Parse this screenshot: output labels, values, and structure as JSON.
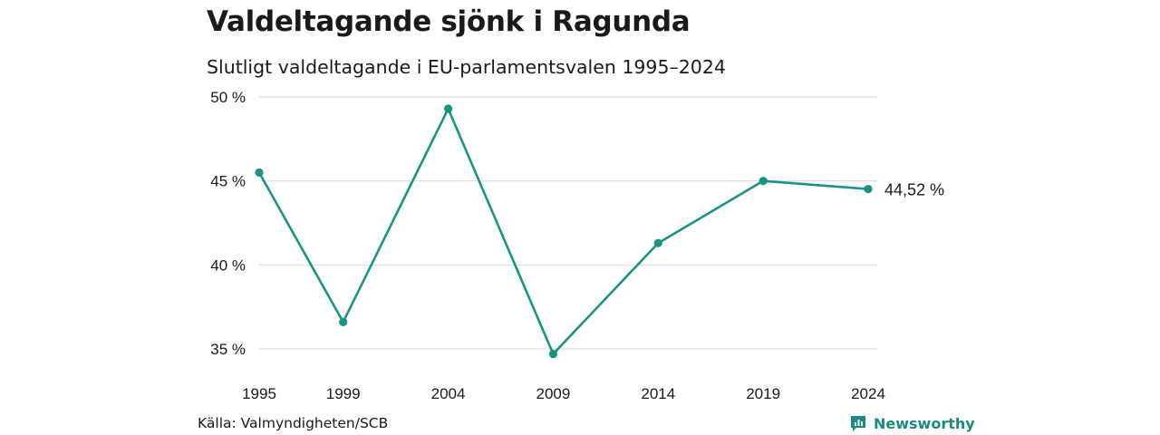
{
  "header": {
    "title": "Valdeltagande sjönk i Ragunda",
    "subtitle": "Slutligt valdeltagande i EU-parlamentsvalen 1995–2024"
  },
  "footer": {
    "source": "Källa: Valmyndigheten/SCB",
    "brand": "Newsworthy",
    "brand_icon": "newsworthy-logo-icon"
  },
  "colors": {
    "line": "#1a9385",
    "grid": "#dddddd",
    "brand": "#1a8b80"
  },
  "chart_data": {
    "type": "line",
    "title": "Valdeltagande sjönk i Ragunda",
    "subtitle": "Slutligt valdeltagande i EU-parlamentsvalen 1995–2024",
    "categories": [
      "1995",
      "1999",
      "2004",
      "2009",
      "2014",
      "2019",
      "2024"
    ],
    "series": [
      {
        "values": [
          45.5,
          36.6,
          49.3,
          34.7,
          41.3,
          45.0,
          44.52
        ]
      }
    ],
    "ylim": [
      35,
      50
    ],
    "yticks": [
      50,
      45,
      40,
      35
    ],
    "ytick_labels": [
      "50 %",
      "45 %",
      "40 %",
      "35 %"
    ],
    "end_label": "44,52 %",
    "grid": true,
    "legend": "none"
  }
}
